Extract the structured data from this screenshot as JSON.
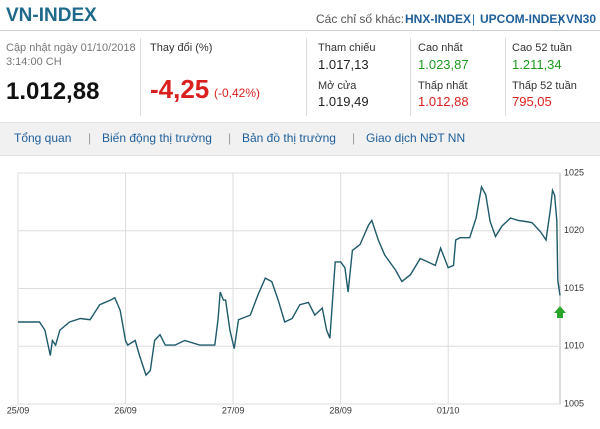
{
  "header": {
    "title": "VN-INDEX",
    "other_label": "Các chỉ số khác:",
    "links": [
      "HNX-INDEX",
      "UPCOM-INDEX",
      "VN30"
    ]
  },
  "summary": {
    "updated": "Cập nhật ngày 01/10/2018",
    "time": "3:14:00 CH",
    "index": "1.012,88",
    "change_label": "Thay đổi (%)",
    "change": "-4,25",
    "change_pct": "(-0,42%)"
  },
  "stats": [
    {
      "label": "Tham chiếu",
      "value": "1.017,13"
    },
    {
      "label": "Mở cửa",
      "value": "1.019,49"
    },
    {
      "label": "Cao nhất",
      "value": "1.023,87"
    },
    {
      "label": "Thấp nhất",
      "value": "1.012,88"
    },
    {
      "label": "Cao 52 tuần",
      "value": "1.211,34"
    },
    {
      "label": "Thấp 52 tuần",
      "value": "795,05"
    }
  ],
  "tabs": [
    "Tổng quan",
    "Biến động thị trường",
    "Bản đồ thị trường",
    "Giao dịch NĐT NN"
  ],
  "chart_data": {
    "type": "line",
    "color": "#1d5a6a",
    "grid": true,
    "xlim": [
      0,
      5.04
    ],
    "ylim": [
      1005,
      1025
    ],
    "yticks": [
      1005,
      1010,
      1015,
      1020,
      1025
    ],
    "xticks": [
      {
        "value": 0,
        "label": "25/09"
      },
      {
        "value": 1,
        "label": "26/09"
      },
      {
        "value": 2,
        "label": "27/09"
      },
      {
        "value": 3,
        "label": "28/09"
      },
      {
        "value": 4,
        "label": "01/10"
      }
    ],
    "x": [
      0,
      0.2,
      0.25,
      0.28,
      0.3,
      0.32,
      0.35,
      0.39,
      0.48,
      0.58,
      0.67,
      0.76,
      0.86,
      0.9,
      0.95,
      1.0,
      1.02,
      1.09,
      1.13,
      1.19,
      1.23,
      1.27,
      1.32,
      1.37,
      1.46,
      1.55,
      1.69,
      1.83,
      1.86,
      1.88,
      1.91,
      1.93,
      1.97,
      2.01,
      2.05,
      2.16,
      2.23,
      2.3,
      2.36,
      2.42,
      2.48,
      2.55,
      2.62,
      2.7,
      2.76,
      2.83,
      2.87,
      2.9,
      2.95,
      3.0,
      3.04,
      3.07,
      3.11,
      3.18,
      3.26,
      3.29,
      3.35,
      3.41,
      3.51,
      3.57,
      3.65,
      3.74,
      3.81,
      3.88,
      3.93,
      4.0,
      4.05,
      4.07,
      4.11,
      4.2,
      4.26,
      4.31,
      4.35,
      4.39,
      4.44,
      4.5,
      4.58,
      4.65,
      4.72,
      4.78,
      4.86,
      4.91,
      4.95,
      4.97,
      4.99,
      5.01,
      5.02,
      5.04
    ],
    "values": [
      1012.1,
      1012.1,
      1011.4,
      1010.1,
      1009.2,
      1010.5,
      1010.1,
      1011.4,
      1012.1,
      1012.4,
      1012.3,
      1013.6,
      1014.0,
      1014.2,
      1013.1,
      1010.5,
      1010.1,
      1010.5,
      1009.2,
      1007.5,
      1007.9,
      1010.5,
      1011.0,
      1010.1,
      1010.1,
      1010.5,
      1010.1,
      1010.1,
      1012.3,
      1014.7,
      1014.0,
      1014.0,
      1011.4,
      1009.8,
      1012.3,
      1012.7,
      1014.4,
      1015.9,
      1015.6,
      1014.0,
      1012.1,
      1012.4,
      1013.6,
      1013.8,
      1012.7,
      1013.3,
      1011.4,
      1010.7,
      1017.3,
      1017.3,
      1016.8,
      1014.7,
      1018.3,
      1018.8,
      1020.5,
      1020.9,
      1019.2,
      1017.9,
      1016.6,
      1015.6,
      1016.2,
      1017.6,
      1017.3,
      1017.0,
      1018.5,
      1016.8,
      1017.0,
      1019.2,
      1019.4,
      1019.4,
      1021.1,
      1023.8,
      1023.1,
      1020.8,
      1019.5,
      1020.4,
      1021.1,
      1020.9,
      1020.8,
      1020.7,
      1019.9,
      1019.2,
      1021.8,
      1023.5,
      1023.1,
      1020.9,
      1015.7,
      1014.4
    ]
  }
}
